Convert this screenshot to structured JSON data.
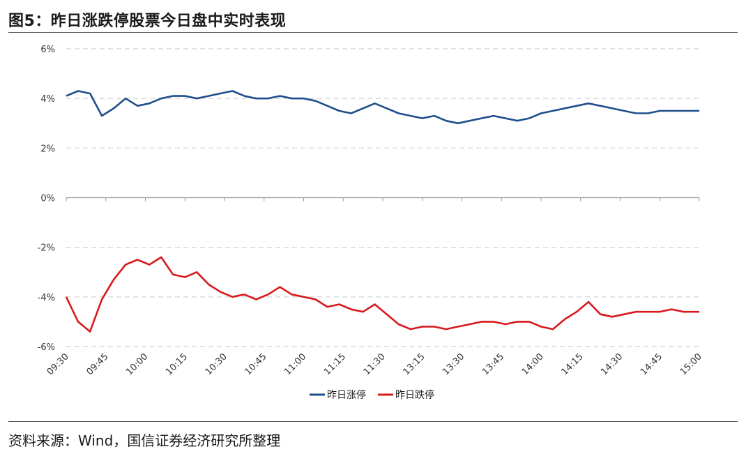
{
  "header": {
    "title": "图5：昨日涨跌停股票今日盘中实时表现"
  },
  "footer": {
    "source": "资料来源：Wind，国信证券经济研究所整理"
  },
  "chart_data": {
    "type": "line",
    "xlabel": "",
    "ylabel": "",
    "ylim": [
      -0.06,
      0.06
    ],
    "yticks": [
      0.06,
      0.04,
      0.02,
      0,
      -0.02,
      -0.04,
      -0.06
    ],
    "ytick_labels": [
      "6%",
      "4%",
      "2%",
      "0%",
      "-2%",
      "-4%",
      "-6%"
    ],
    "xtick_labels": [
      "09:30",
      "09:45",
      "10:00",
      "10:15",
      "10:30",
      "10:45",
      "11:00",
      "11:15",
      "11:30",
      "13:15",
      "13:30",
      "13:45",
      "14:00",
      "14:15",
      "14:30",
      "14:45",
      "15:00"
    ],
    "grid": "horizontal-dashed",
    "legend_position": "bottom-center",
    "series": [
      {
        "name": "昨日涨停",
        "color": "#1f4e8c",
        "x": [
          0,
          0.3,
          0.6,
          0.9,
          1.2,
          1.5,
          1.8,
          2.1,
          2.4,
          2.7,
          3.0,
          3.3,
          3.6,
          3.9,
          4.2,
          4.5,
          4.8,
          5.1,
          5.4,
          5.7,
          6.0,
          6.3,
          6.6,
          6.9,
          7.2,
          7.5,
          7.8,
          8.1,
          8.4,
          8.7,
          9.0,
          9.3,
          9.6,
          9.9,
          10.2,
          10.5,
          10.8,
          11.1,
          11.4,
          11.7,
          12.0,
          12.3,
          12.6,
          12.9,
          13.2,
          13.5,
          13.8,
          14.1,
          14.4,
          14.7,
          15.0,
          15.3,
          15.6,
          15.9,
          16.0
        ],
        "values": [
          0.041,
          0.043,
          0.042,
          0.033,
          0.036,
          0.04,
          0.037,
          0.038,
          0.04,
          0.041,
          0.041,
          0.04,
          0.041,
          0.042,
          0.043,
          0.041,
          0.04,
          0.04,
          0.041,
          0.04,
          0.04,
          0.039,
          0.037,
          0.035,
          0.034,
          0.036,
          0.038,
          0.036,
          0.034,
          0.033,
          0.032,
          0.033,
          0.031,
          0.03,
          0.031,
          0.032,
          0.033,
          0.032,
          0.031,
          0.032,
          0.034,
          0.035,
          0.036,
          0.037,
          0.038,
          0.037,
          0.036,
          0.035,
          0.034,
          0.034,
          0.035,
          0.035,
          0.035,
          0.035,
          0.035
        ]
      },
      {
        "name": "昨日跌停",
        "color": "#d7191c",
        "x": [
          0,
          0.3,
          0.6,
          0.9,
          1.2,
          1.5,
          1.8,
          2.1,
          2.4,
          2.7,
          3.0,
          3.3,
          3.6,
          3.9,
          4.2,
          4.5,
          4.8,
          5.1,
          5.4,
          5.7,
          6.0,
          6.3,
          6.6,
          6.9,
          7.2,
          7.5,
          7.8,
          8.1,
          8.4,
          8.7,
          9.0,
          9.3,
          9.6,
          9.9,
          10.2,
          10.5,
          10.8,
          11.1,
          11.4,
          11.7,
          12.0,
          12.3,
          12.6,
          12.9,
          13.2,
          13.5,
          13.8,
          14.1,
          14.4,
          14.7,
          15.0,
          15.3,
          15.6,
          15.9,
          16.0
        ],
        "values": [
          -0.04,
          -0.05,
          -0.054,
          -0.041,
          -0.033,
          -0.027,
          -0.025,
          -0.027,
          -0.024,
          -0.031,
          -0.032,
          -0.03,
          -0.035,
          -0.038,
          -0.04,
          -0.039,
          -0.041,
          -0.039,
          -0.036,
          -0.039,
          -0.04,
          -0.041,
          -0.044,
          -0.043,
          -0.045,
          -0.046,
          -0.043,
          -0.047,
          -0.051,
          -0.053,
          -0.052,
          -0.052,
          -0.053,
          -0.052,
          -0.051,
          -0.05,
          -0.05,
          -0.051,
          -0.05,
          -0.05,
          -0.052,
          -0.053,
          -0.049,
          -0.046,
          -0.042,
          -0.047,
          -0.048,
          -0.047,
          -0.046,
          -0.046,
          -0.046,
          -0.045,
          -0.046,
          -0.046,
          -0.046
        ]
      }
    ]
  }
}
